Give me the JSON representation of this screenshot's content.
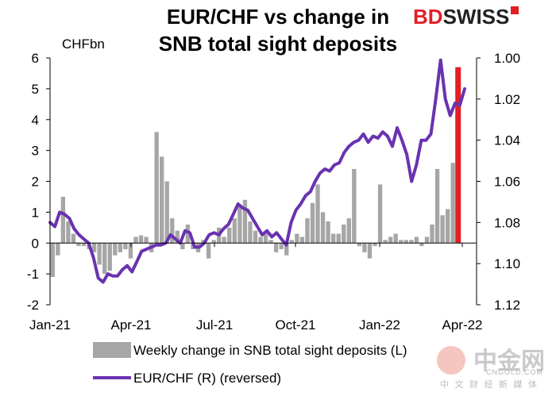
{
  "title_line1": "EUR/CHF vs change in",
  "title_line2": "SNB total sight deposits",
  "brand": {
    "part1": "BD",
    "part2": "SWISS"
  },
  "ylabel_left": "CHFbn",
  "watermark": {
    "name": "中金网",
    "url": "CNGOLD.COM",
    "sub": "中 文 财 经 新 媒 体"
  },
  "colors": {
    "bars": "#a6a6a6",
    "highlight_bar": "#e31e24",
    "line": "#6a32b0"
  },
  "chart_data": {
    "type": "bar+line",
    "title": "EUR/CHF vs change in SNB total sight deposits",
    "left_axis": {
      "label": "CHFbn",
      "ylim": [
        -2,
        6
      ],
      "ticks": [
        "6",
        "5",
        "4",
        "3",
        "2",
        "1",
        "0",
        "-1",
        "-2"
      ]
    },
    "right_axis": {
      "ylim_reversed": [
        1.12,
        1.0
      ],
      "ticks": [
        "1.00",
        "1.02",
        "1.04",
        "1.06",
        "1.08",
        "1.10",
        "1.12"
      ]
    },
    "x_ticks": [
      "Jan-21",
      "Apr-21",
      "Jul-21",
      "Oct-21",
      "Jan-22",
      "Apr-22"
    ],
    "bars": {
      "name": "Weekly change in SNB total sight deposits (L)",
      "values": [
        -1.1,
        -0.4,
        1.5,
        0.7,
        0.3,
        -0.1,
        -0.1,
        -0.2,
        -0.3,
        -0.7,
        -1.0,
        -0.9,
        -0.4,
        -0.3,
        -0.2,
        -0.5,
        0.2,
        0.25,
        0.2,
        -0.3,
        3.6,
        2.8,
        2.0,
        0.8,
        0.4,
        -0.2,
        0.6,
        -0.2,
        -0.3,
        0.1,
        -0.5,
        0.1,
        0.5,
        0.2,
        0.5,
        0.8,
        1.2,
        1.4,
        0.7,
        0.4,
        0.2,
        0.3,
        0.1,
        -0.3,
        -0.2,
        -0.4,
        0.1,
        0.3,
        0.2,
        0.8,
        1.3,
        1.9,
        1.0,
        0.7,
        0.3,
        0.3,
        0.6,
        0.8,
        2.4,
        -0.1,
        -0.3,
        -0.5,
        -0.1,
        1.9,
        0.1,
        0.2,
        0.3,
        0.1,
        0.1,
        0.1,
        0.2,
        -0.1,
        0.2,
        0.6,
        2.4,
        0.9,
        1.1,
        2.6,
        5.7
      ],
      "highlight_last": true
    },
    "line": {
      "name": "EUR/CHF (R) (reversed)",
      "values": [
        1.08,
        1.082,
        1.075,
        1.076,
        1.078,
        1.083,
        1.086,
        1.088,
        1.09,
        1.097,
        1.107,
        1.109,
        1.105,
        1.106,
        1.106,
        1.103,
        1.101,
        1.104,
        1.099,
        1.094,
        1.093,
        1.092,
        1.091,
        1.091,
        1.09,
        1.086,
        1.088,
        1.09,
        1.084,
        1.085,
        1.092,
        1.092,
        1.09,
        1.086,
        1.085,
        1.086,
        1.083,
        1.081,
        1.076,
        1.071,
        1.073,
        1.074,
        1.078,
        1.082,
        1.086,
        1.084,
        1.087,
        1.085,
        1.088,
        1.091,
        1.08,
        1.074,
        1.071,
        1.067,
        1.065,
        1.06,
        1.056,
        1.054,
        1.055,
        1.052,
        1.051,
        1.046,
        1.043,
        1.041,
        1.04,
        1.037,
        1.041,
        1.038,
        1.039,
        1.036,
        1.038,
        1.043,
        1.034,
        1.04,
        1.047,
        1.06,
        1.052,
        1.04,
        1.04,
        1.037,
        1.02,
        1.001,
        1.02,
        1.028,
        1.022,
        1.023,
        1.015
      ]
    }
  }
}
